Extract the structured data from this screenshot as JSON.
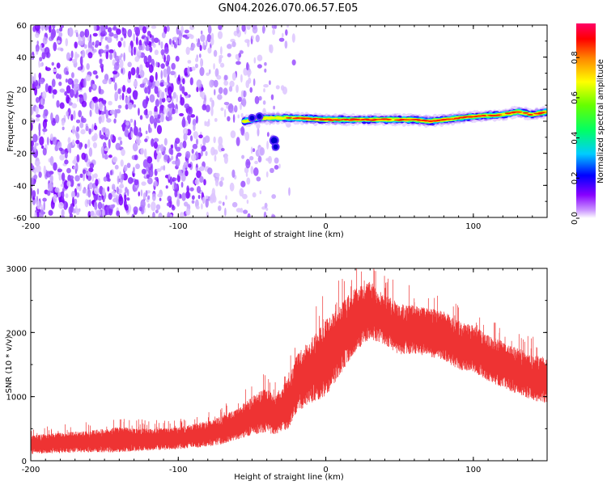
{
  "title": "GN04.2026.070.06.57.E05",
  "chart_data": [
    {
      "type": "heatmap",
      "name": "spectrogram",
      "xlabel": "Height of straight line (km)",
      "ylabel": "Frequency (Hz)",
      "xlim": [
        -200,
        150
      ],
      "ylim": [
        -60,
        60
      ],
      "xticks": [
        "-200",
        "-100",
        "0",
        "100"
      ],
      "xtick_values": [
        -200,
        -100,
        0,
        100
      ],
      "yticks": [
        "60",
        "40",
        "20",
        "0",
        "-20",
        "-40",
        "-60"
      ],
      "ytick_values": [
        60,
        40,
        20,
        0,
        -20,
        -40,
        -60
      ],
      "colorbar": {
        "label": "Normalized spectral amplitude",
        "range": [
          0,
          0.97
        ],
        "ticks": [
          "0.0",
          "0.2",
          "0.4",
          "0.6",
          "0.8"
        ],
        "tick_values": [
          0.0,
          0.2,
          0.4,
          0.6,
          0.8
        ],
        "colors": [
          "#ffffff",
          "#8800ff",
          "#0000ff",
          "#00ccff",
          "#00ff66",
          "#66ff00",
          "#ffff00",
          "#ff8800",
          "#ff0000",
          "#ff0066"
        ]
      },
      "noise_region_x": [
        -200,
        -30
      ],
      "signal_track": {
        "x": [
          -55,
          -45,
          -35,
          -20,
          0,
          20,
          40,
          60,
          70,
          80,
          100,
          120,
          130,
          140,
          150
        ],
        "y": [
          0,
          2,
          2,
          2,
          1,
          1,
          1,
          1,
          0,
          1,
          3,
          4,
          6,
          4,
          6
        ]
      }
    },
    {
      "type": "line",
      "name": "snr",
      "xlabel": "Height of straight line (km)",
      "ylabel": "SNR (10 * v/v)",
      "xlim": [
        -200,
        150
      ],
      "ylim": [
        0,
        3000
      ],
      "xticks": [
        "-200",
        "-100",
        "0",
        "100"
      ],
      "xtick_values": [
        -200,
        -100,
        0,
        100
      ],
      "yticks": [
        "3000",
        "2000",
        "1000",
        "0"
      ],
      "ytick_values": [
        3000,
        2000,
        1000,
        0
      ],
      "color": "#ee3333",
      "series": [
        {
          "name": "SNR",
          "envelope_x": [
            -200,
            -180,
            -160,
            -140,
            -120,
            -100,
            -80,
            -70,
            -60,
            -50,
            -40,
            -35,
            -25,
            -20,
            -10,
            0,
            10,
            20,
            30,
            40,
            50,
            60,
            70,
            80,
            90,
            100,
            110,
            120,
            130,
            140,
            150
          ],
          "envelope_mid": [
            250,
            280,
            300,
            330,
            330,
            350,
            420,
            480,
            580,
            700,
            800,
            700,
            900,
            1200,
            1400,
            1600,
            1900,
            2200,
            2350,
            2200,
            2050,
            2050,
            2000,
            1950,
            1800,
            1750,
            1600,
            1500,
            1400,
            1300,
            1250
          ],
          "envelope_amp": [
            150,
            160,
            170,
            200,
            170,
            170,
            200,
            220,
            250,
            300,
            350,
            300,
            400,
            450,
            500,
            600,
            550,
            500,
            450,
            400,
            400,
            380,
            380,
            380,
            380,
            360,
            360,
            360,
            360,
            360,
            360
          ]
        }
      ]
    }
  ]
}
